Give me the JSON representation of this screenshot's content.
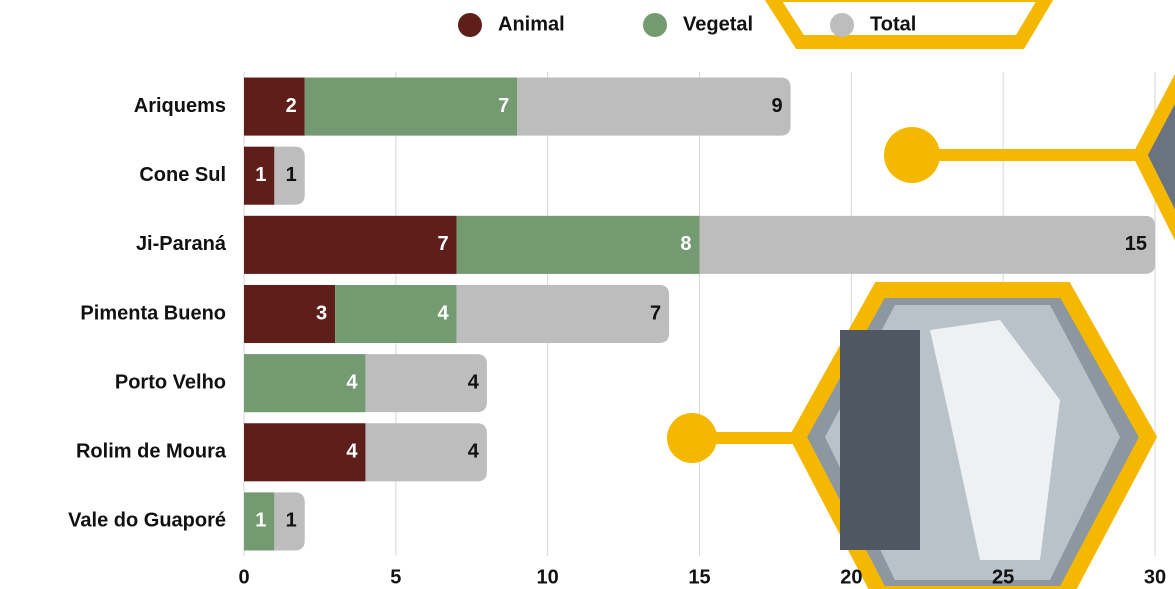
{
  "chart_data": {
    "type": "stacked-barh",
    "categories": [
      "Ariquems",
      "Cone Sul",
      "Ji-Paraná",
      "Pimenta Bueno",
      "Porto Velho",
      "Rolim de Moura",
      "Vale do Guaporé"
    ],
    "series": [
      {
        "name": "Animal",
        "color": "#5e1f1a",
        "values": [
          2,
          1,
          7,
          3,
          null,
          4,
          null
        ]
      },
      {
        "name": "Vegetal",
        "color": "#739a71",
        "values": [
          7,
          null,
          8,
          4,
          4,
          null,
          1
        ]
      },
      {
        "name": "Total",
        "color": "#bdbdbd",
        "values": [
          9,
          1,
          15,
          7,
          4,
          4,
          1
        ]
      }
    ],
    "xlim": [
      0,
      30
    ],
    "xticks": [
      0,
      5,
      10,
      15,
      20,
      25,
      30
    ],
    "grid": true,
    "legend": "top"
  }
}
